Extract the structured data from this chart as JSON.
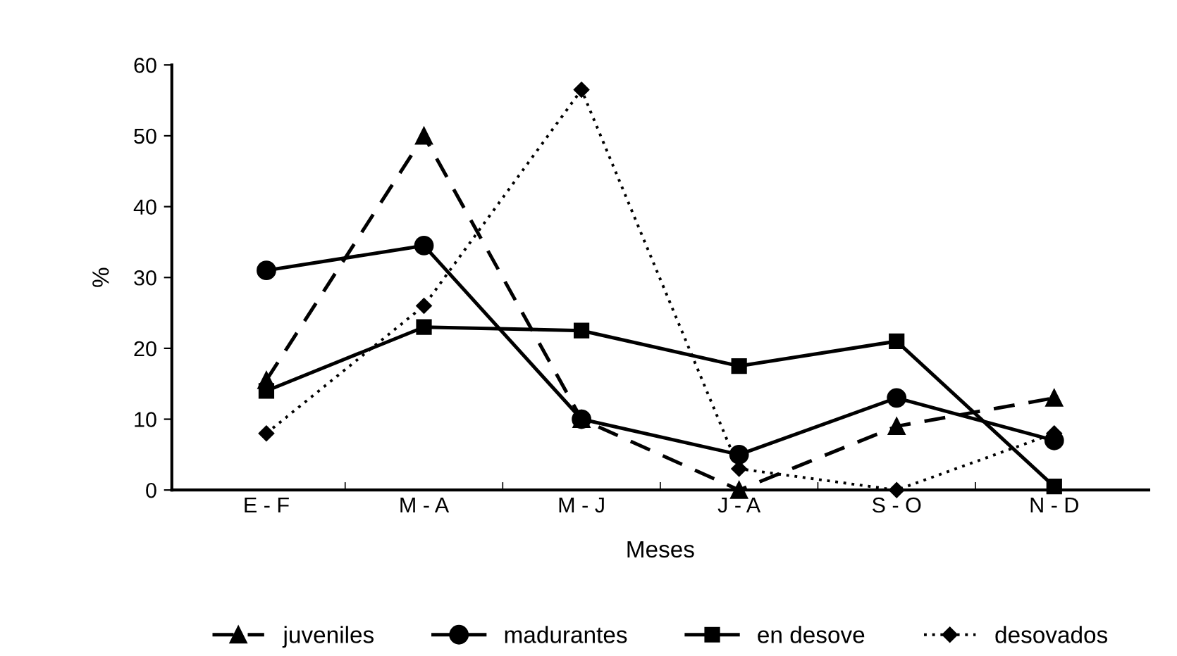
{
  "chart_data": {
    "type": "line",
    "xlabel": "Meses",
    "ylabel": "%",
    "categories": [
      "E - F",
      "M - A",
      "M - J",
      "J - A",
      "S - O",
      "N - D"
    ],
    "series": [
      {
        "name": "juveniles",
        "color": "#000000",
        "marker": "triangle",
        "line_style": "dashed",
        "values": [
          15.5,
          50,
          10,
          0,
          9,
          13
        ]
      },
      {
        "name": "madurantes",
        "color": "#000000",
        "marker": "circle",
        "line_style": "solid",
        "values": [
          31,
          34.5,
          10,
          5,
          13,
          7
        ]
      },
      {
        "name": "en desove",
        "color": "#000000",
        "marker": "square",
        "line_style": "solid",
        "values": [
          14,
          23,
          22.5,
          17.5,
          21,
          0.5
        ]
      },
      {
        "name": "desovados",
        "color": "#000000",
        "marker": "diamond",
        "line_style": "dotted",
        "values": [
          8,
          26,
          56.5,
          3,
          0,
          8
        ]
      }
    ],
    "ylim": [
      0,
      60
    ],
    "yticks": [
      0,
      10,
      20,
      30,
      40,
      50,
      60
    ],
    "grid": false,
    "legend": "bottom"
  }
}
